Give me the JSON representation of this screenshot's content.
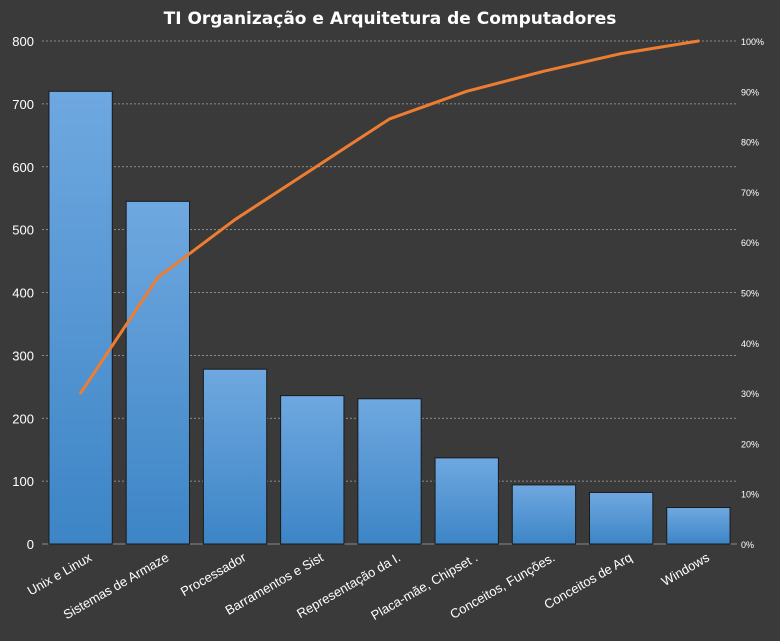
{
  "chart_data": {
    "type": "bar",
    "title": "TI Organização  e Arquitetura  de Computadores",
    "categories": [
      "Unix e Linux",
      "Sistemas de Armaze",
      "Processador",
      "Barramentos  e Sist",
      "Representação da I.",
      "Placa-mãe, Chipset .",
      "Conceitos, Funções.",
      "Conceitos de Arq",
      "Windows"
    ],
    "series": [
      {
        "kind": "bar",
        "axis": "left",
        "values": [
          720,
          545,
          278,
          236,
          231,
          137,
          94,
          82,
          58
        ]
      },
      {
        "kind": "line",
        "axis": "right",
        "values": [
          0.3,
          0.53,
          0.645,
          0.745,
          0.845,
          0.9,
          0.94,
          0.975,
          1.0
        ]
      }
    ],
    "ylim": [
      0,
      800
    ],
    "yticks": [
      "0",
      "100",
      "200",
      "300",
      "400",
      "500",
      "600",
      "700",
      "800"
    ],
    "y2lim": [
      0,
      1
    ],
    "y2ticks": [
      "0%",
      "10%",
      "20%",
      "30%",
      "40%",
      "50%",
      "60%",
      "70%",
      "80%",
      "90%",
      "100%"
    ],
    "grid": true,
    "legend": "none",
    "colors": {
      "background": "#3a3a3a",
      "bar_top": "#6fa8e0",
      "bar_bottom": "#3d85c6",
      "line": "#ed7d31",
      "grid": "#a6a6a6",
      "text": "#ffffff"
    }
  }
}
